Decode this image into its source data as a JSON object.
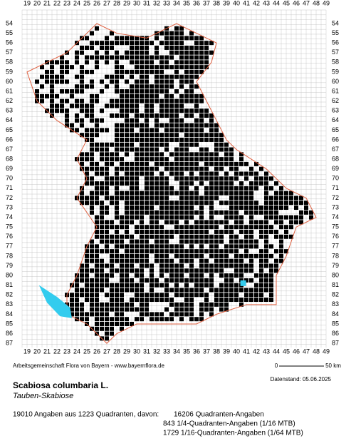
{
  "map": {
    "columns": [
      19,
      20,
      21,
      22,
      23,
      24,
      25,
      26,
      27,
      28,
      29,
      30,
      31,
      32,
      33,
      34,
      35,
      36,
      37,
      38,
      39,
      40,
      41,
      42,
      43,
      44,
      45,
      46,
      47,
      48,
      49
    ],
    "rows": [
      54,
      55,
      56,
      57,
      58,
      59,
      60,
      61,
      62,
      63,
      64,
      65,
      66,
      67,
      68,
      69,
      70,
      71,
      72,
      73,
      74,
      75,
      76,
      77,
      78,
      79,
      80,
      81,
      82,
      83,
      84,
      85,
      86,
      87
    ],
    "credit": "Arbeitsgemeinschaft Flora von Bayern - www.bayernflora.de",
    "scale_start": "0",
    "scale_end": "50 km",
    "date": "Datenstand: 05.06.2025",
    "species": "Scabiosa columbaria L.",
    "common_name": "Tauben-Skabiose",
    "summary": "19010 Angaben aus 1223 Quadranten, davon:",
    "breakdown": [
      "16206 Quadranten-Angaben",
      "843 1/4-Quadranten-Angaben (1/16 MTB)",
      "1729 1/16-Quadranten-Angaben (1/64 MTB)"
    ]
  }
}
